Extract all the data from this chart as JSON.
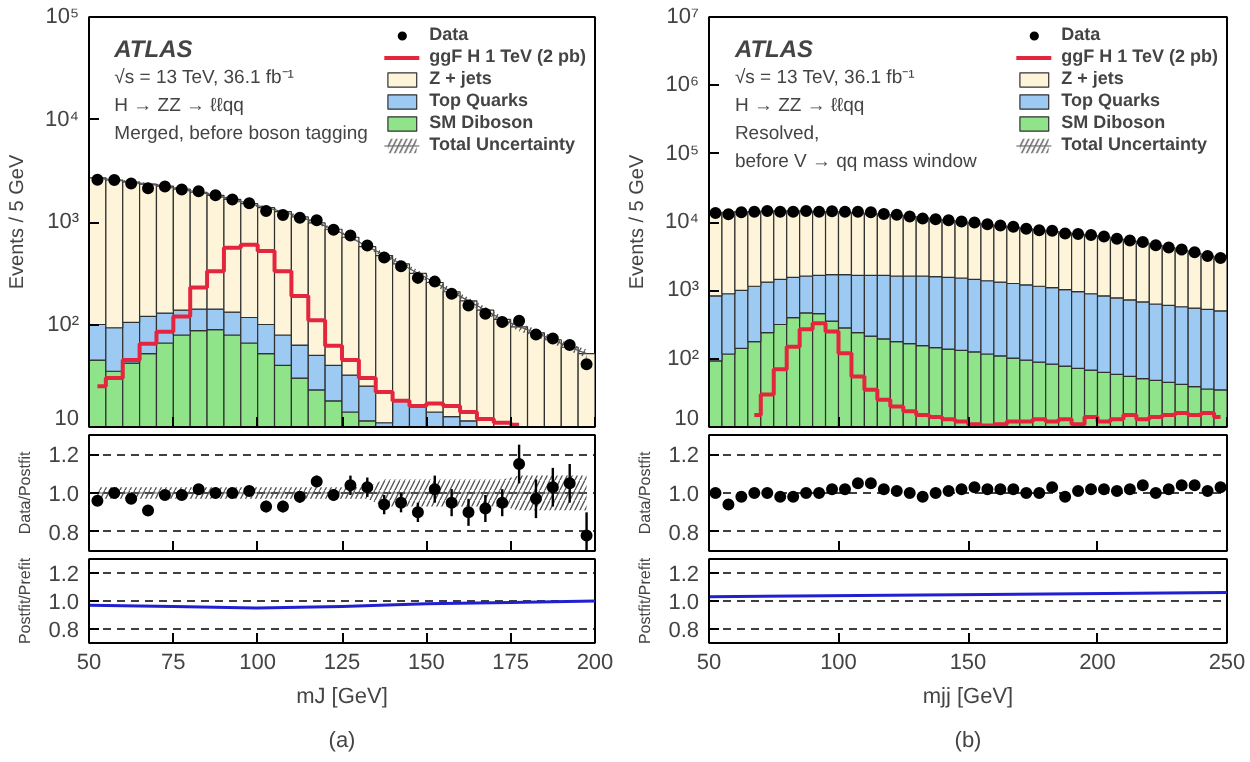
{
  "chart_data": [
    {
      "type": "bar",
      "stacked": true,
      "log": "y",
      "xlim": [
        50,
        200
      ],
      "ylim": [
        10,
        100000
      ],
      "xticks": [
        50,
        75,
        100,
        125,
        150,
        175,
        200
      ],
      "yticks": [
        10,
        {
          "value": 100,
          "label": "10²"
        },
        {
          "value": 1000,
          "label": "10³"
        },
        {
          "value": 10000,
          "label": "10⁴"
        },
        {
          "value": 100000,
          "label": "10⁵"
        }
      ],
      "tick_labels": "y",
      "ylabel": "Events / 5 GeV",
      "legend": "top right",
      "annotations": [
        "ATLAS",
        "√s = 13 TeV,  36.1 fb⁻¹",
        "H → ZZ → ℓℓqq",
        "Merged, before boson tagging"
      ],
      "x": [
        52.5,
        57.5,
        62.5,
        67.5,
        72.5,
        77.5,
        82.5,
        87.5,
        92.5,
        97.5,
        102.5,
        107.5,
        112.5,
        117.5,
        122.5,
        127.5,
        132.5,
        137.5,
        142.5,
        147.5,
        152.5,
        157.5,
        162.5,
        167.5,
        172.5,
        177.5,
        182.5,
        187.5,
        192.5,
        197.5
      ],
      "series": [
        {
          "name": "Data",
          "type": "scatter",
          "color": "#000000",
          "values": [
            2580,
            2570,
            2380,
            2130,
            2220,
            2070,
            1990,
            1820,
            1660,
            1525,
            1280,
            1170,
            1100,
            1040,
            840,
            740,
            590,
            450,
            370,
            285,
            262,
            199,
            153,
            127,
            106,
            109,
            80,
            73,
            63,
            41
          ]
        },
        {
          "name": "ggF H 1 TeV (2 pb)",
          "type": "step",
          "color": "#e3263d",
          "values": [
            25,
            30,
            45,
            65,
            85,
            120,
            230,
            330,
            560,
            600,
            520,
            330,
            190,
            110,
            62,
            45,
            30,
            22,
            18,
            16,
            17,
            16,
            14,
            12,
            11,
            10.5,
            null,
            null,
            null,
            null
          ]
        },
        {
          "name": "SM Diboson",
          "type": "bar",
          "color": "#8fe388",
          "values": [
            45,
            35,
            42,
            52,
            66,
            79,
            87,
            89,
            79,
            66,
            52,
            40,
            30,
            23,
            18,
            14,
            11.5,
            null,
            null,
            null,
            null,
            null,
            null,
            null,
            null,
            null,
            null,
            null,
            null,
            null
          ]
        },
        {
          "name": "Top Quarks",
          "type": "bar",
          "color": "#9dcaf3",
          "values": [
            55,
            58,
            63,
            68,
            63,
            59,
            54,
            52,
            53,
            51,
            48,
            39,
            33,
            27,
            22,
            18,
            13.5,
            11,
            18,
            16,
            14,
            12.6,
            11.5,
            null,
            null,
            null,
            null,
            null,
            null,
            null
          ]
        },
        {
          "name": "Z + jets",
          "type": "bar",
          "color": "#fdf4da",
          "values": [
            2590,
            2477,
            2350,
            2220,
            2111,
            1952,
            1809,
            1679,
            1528,
            1393,
            1280,
            1181,
            1057,
            930,
            810,
            678,
            550,
            459,
            372,
            300,
            243,
            196,
            158.5,
            138,
            112,
            95,
            83,
            71,
            60,
            52
          ]
        },
        {
          "name": "Total Uncertainty",
          "type": "line",
          "color": "#555555",
          "values": [
            2690,
            2570,
            2455,
            2340,
            2240,
            2090,
            1950,
            1820,
            1660,
            1510,
            1380,
            1260,
            1120,
            980,
            850,
            710,
            575,
            480,
            390,
            316,
            257,
            209,
            170,
            138,
            112,
            95,
            83,
            71,
            60,
            52
          ],
          "lower": [
            2609,
            2493,
            2381,
            2270,
            2173,
            2027,
            1892,
            1765,
            1610,
            1465,
            1339,
            1222,
            1086,
            951,
            825,
            689,
            558,
            446,
            363,
            294,
            239,
            194,
            158,
            128,
            104,
            86,
            76,
            65,
            55,
            47
          ],
          "upper": [
            2771,
            2647,
            2529,
            2410,
            2307,
            2153,
            2009,
            1875,
            1710,
            1555,
            1421,
            1298,
            1154,
            1009,
            876,
            731,
            592,
            514,
            417,
            338,
            275,
            224,
            182,
            148,
            120,
            104,
            90,
            77,
            65,
            57
          ]
        }
      ]
    },
    {
      "type": "scatter",
      "xlim": [
        50,
        200
      ],
      "ylim": [
        0.7,
        1.3
      ],
      "xticks": [
        50,
        75,
        100,
        125,
        150,
        175,
        200
      ],
      "yticks": [
        0.8,
        {
          "value": 1,
          "label": "1.0"
        },
        1.2
      ],
      "tick_labels": "y",
      "ylabel": "Data/Postfit",
      "grid": "y",
      "x": [
        52.5,
        57.5,
        62.5,
        67.5,
        72.5,
        77.5,
        82.5,
        87.5,
        92.5,
        97.5,
        102.5,
        107.5,
        112.5,
        117.5,
        122.5,
        127.5,
        132.5,
        137.5,
        142.5,
        147.5,
        152.5,
        157.5,
        162.5,
        167.5,
        172.5,
        177.5,
        182.5,
        187.5,
        192.5,
        197.5
      ],
      "series": [
        {
          "type": "line",
          "color": "#555555",
          "values": [
            1,
            1,
            1,
            1,
            1,
            1,
            1,
            1,
            1,
            1,
            1,
            1,
            1,
            1,
            1,
            1,
            1,
            1,
            1,
            1,
            1,
            1,
            1,
            1,
            1,
            1,
            1,
            1,
            1,
            1
          ],
          "lower": [
            0.97,
            0.97,
            0.97,
            0.97,
            0.97,
            0.97,
            0.97,
            0.97,
            0.97,
            0.97,
            0.97,
            0.97,
            0.97,
            0.97,
            0.97,
            0.97,
            0.97,
            0.93,
            0.93,
            0.93,
            0.93,
            0.93,
            0.93,
            0.93,
            0.93,
            0.91,
            0.91,
            0.91,
            0.91,
            0.91
          ],
          "upper": [
            1.03,
            1.03,
            1.03,
            1.03,
            1.03,
            1.03,
            1.03,
            1.03,
            1.03,
            1.03,
            1.03,
            1.03,
            1.03,
            1.03,
            1.03,
            1.03,
            1.03,
            1.07,
            1.07,
            1.07,
            1.07,
            1.07,
            1.07,
            1.07,
            1.07,
            1.09,
            1.09,
            1.09,
            1.09,
            1.09
          ]
        },
        {
          "type": "scatter",
          "color": "#000000",
          "values": [
            0.96,
            1.0,
            0.97,
            0.91,
            0.99,
            0.99,
            1.02,
            1.0,
            1.0,
            1.01,
            0.93,
            0.93,
            0.98,
            1.06,
            0.99,
            1.04,
            1.03,
            0.94,
            0.95,
            0.9,
            1.02,
            0.95,
            0.9,
            0.92,
            0.95,
            1.15,
            0.97,
            1.03,
            1.05,
            0.78
          ],
          "errors": [
            0.02,
            0.02,
            0.02,
            0.02,
            0.02,
            0.02,
            0.02,
            0.02,
            0.02,
            0.02,
            0.03,
            0.03,
            0.03,
            0.03,
            0.03,
            0.05,
            0.05,
            0.05,
            0.05,
            0.05,
            0.07,
            0.07,
            0.07,
            0.07,
            0.07,
            0.1,
            0.1,
            0.1,
            0.1,
            0.12
          ]
        }
      ]
    },
    {
      "type": "line",
      "xlim": [
        50,
        200
      ],
      "ylim": [
        0.7,
        1.3
      ],
      "xticks": [
        50,
        75,
        100,
        125,
        150,
        175,
        200
      ],
      "yticks": [
        0.8,
        {
          "value": 1,
          "label": "1.0"
        },
        1.2
      ],
      "ylabel": "Postfit/Prefit",
      "xlabel": "mJ [GeV]",
      "grid": "y",
      "annotations": [
        "(a)"
      ],
      "series": [
        {
          "color": "#2020d0",
          "x": [
            50,
            75,
            100,
            125,
            150,
            175,
            200
          ],
          "values": [
            0.97,
            0.96,
            0.95,
            0.96,
            0.98,
            0.99,
            1.0
          ]
        }
      ]
    },
    {
      "type": "bar",
      "stacked": true,
      "log": "y",
      "xlim": [
        50,
        250
      ],
      "ylim": [
        10,
        10000000
      ],
      "xticks": [
        50,
        100,
        150,
        200,
        250
      ],
      "yticks": [
        10,
        {
          "value": 100,
          "label": "10²"
        },
        {
          "value": 1000,
          "label": "10³"
        },
        {
          "value": 10000,
          "label": "10⁴"
        },
        {
          "value": 100000,
          "label": "10⁵"
        },
        {
          "value": 1000000,
          "label": "10⁶"
        },
        {
          "value": 10000000,
          "label": "10⁷"
        }
      ],
      "tick_labels": "y",
      "ylabel": "Events / 5 GeV",
      "legend": "top right",
      "annotations": [
        "ATLAS",
        "√s = 13 TeV,  36.1 fb⁻¹",
        "H → ZZ → ℓℓqq",
        "Resolved,",
        "before V → qq mass window"
      ],
      "x": [
        52.5,
        57.5,
        62.5,
        67.5,
        72.5,
        77.5,
        82.5,
        87.5,
        92.5,
        97.5,
        102.5,
        107.5,
        112.5,
        117.5,
        122.5,
        127.5,
        132.5,
        137.5,
        142.5,
        147.5,
        152.5,
        157.5,
        162.5,
        167.5,
        172.5,
        177.5,
        182.5,
        187.5,
        192.5,
        197.5,
        202.5,
        207.5,
        212.5,
        217.5,
        222.5,
        227.5,
        232.5,
        237.5,
        242.5,
        247.5
      ],
      "series": [
        {
          "name": "Data",
          "type": "scatter",
          "color": "#000000",
          "values": [
            13490,
            12970,
            13850,
            14130,
            14450,
            14160,
            14160,
            14450,
            14130,
            14410,
            14080,
            14160,
            13840,
            13140,
            12720,
            12020,
            11250,
            10960,
            10570,
            10200,
            9840,
            9300,
            8880,
            8490,
            7940,
            7590,
            7460,
            6780,
            6680,
            6440,
            6150,
            5680,
            5360,
            5100,
            4570,
            4250,
            3950,
            3610,
            3190,
            2970
          ]
        },
        {
          "name": "ggF H 1 TeV (2 pb)",
          "type": "step",
          "color": "#e3263d",
          "values": [
            null,
            null,
            null,
            15,
            30,
            70,
            150,
            270,
            330,
            250,
            120,
            55,
            35,
            25,
            20,
            17,
            15,
            14,
            13,
            12,
            11,
            10.5,
            11,
            12,
            12,
            13,
            12,
            13,
            11,
            14,
            12,
            13,
            15,
            13,
            14,
            15,
            16,
            15,
            16,
            14
          ]
        },
        {
          "name": "SM Diboson",
          "type": "bar",
          "color": "#8fe388",
          "values": [
            93,
            117,
            141,
            178,
            240,
            316,
            398,
            468,
            457,
            355,
            282,
            240,
            214,
            195,
            178,
            166,
            155,
            145,
            138,
            132,
            126,
            117,
            110,
            102,
            95,
            89,
            83,
            78,
            72,
            68,
            63,
            59,
            55,
            51,
            48,
            45,
            42,
            39,
            36,
            35
          ]
        },
        {
          "name": "Top Quarks",
          "type": "bar",
          "color": "#9dcaf3",
          "values": [
            739,
            774,
            859,
            970,
            1078,
            1129,
            1151,
            1154,
            1203,
            1343,
            1416,
            1420,
            1446,
            1465,
            1444,
            1456,
            1467,
            1440,
            1411,
            1382,
            1319,
            1263,
            1208,
            1157,
            1107,
            1059,
            1013,
            945,
            883,
            823,
            769,
            717,
            669,
            625,
            583,
            558,
            533,
            511,
            489,
            466
          ]
        },
        {
          "name": "Z + jets",
          "type": "bar",
          "color": "#fdf4da",
          "values": [
            12658,
            12909,
            13130,
            12982,
            13132,
            13005,
            12901,
            12828,
            12470,
            12432,
            12102,
            11830,
            11520,
            11220,
            10968,
            10398,
            9858,
            9375,
            8921,
            8486,
            8105,
            7740,
            7392,
            7061,
            6738,
            6442,
            6144,
            5897,
            5655,
            5419,
            5198,
            4844,
            4526,
            4224,
            3939,
            3567,
            3225,
            2920,
            2635,
            2379
          ]
        },
        {
          "name": "Total Uncertainty",
          "type": "line",
          "color": "#555555",
          "values": [
            13490,
            13800,
            14130,
            14130,
            14450,
            14450,
            14450,
            14450,
            14130,
            14130,
            13800,
            13490,
            13180,
            12880,
            12590,
            12020,
            11480,
            10960,
            10470,
            10000,
            9550,
            9120,
            8710,
            8320,
            7940,
            7590,
            7240,
            6920,
            6610,
            6310,
            6030,
            5620,
            5250,
            4900,
            4570,
            4170,
            3800,
            3470,
            3160,
            2880
          ],
          "lower": [
            13220,
            13520,
            13850,
            13850,
            14160,
            14160,
            14160,
            14160,
            13850,
            13850,
            13520,
            13220,
            12920,
            12620,
            12340,
            11780,
            11250,
            10740,
            10260,
            9800,
            9360,
            8940,
            8540,
            8150,
            7780,
            7440,
            7100,
            6780,
            6480,
            6180,
            5910,
            5510,
            5150,
            4800,
            4480,
            4090,
            3720,
            3400,
            3100,
            2820
          ],
          "upper": [
            13760,
            14080,
            14410,
            14410,
            14740,
            14740,
            14740,
            14740,
            14410,
            14410,
            14080,
            13760,
            13440,
            13140,
            12840,
            12260,
            11710,
            11180,
            10680,
            10200,
            9740,
            9300,
            8880,
            8490,
            8100,
            7740,
            7380,
            7060,
            6740,
            6440,
            6150,
            5730,
            5360,
            5000,
            4660,
            4250,
            3880,
            3540,
            3220,
            2940
          ]
        }
      ]
    },
    {
      "type": "scatter",
      "xlim": [
        50,
        250
      ],
      "ylim": [
        0.7,
        1.3
      ],
      "xticks": [
        50,
        100,
        150,
        200,
        250
      ],
      "yticks": [
        0.8,
        {
          "value": 1,
          "label": "1.0"
        },
        1.2
      ],
      "tick_labels": "y",
      "ylabel": "Data/Postfit",
      "grid": "y",
      "x": [
        52.5,
        57.5,
        62.5,
        67.5,
        72.5,
        77.5,
        82.5,
        87.5,
        92.5,
        97.5,
        102.5,
        107.5,
        112.5,
        117.5,
        122.5,
        127.5,
        132.5,
        137.5,
        142.5,
        147.5,
        152.5,
        157.5,
        162.5,
        167.5,
        172.5,
        177.5,
        182.5,
        187.5,
        192.5,
        197.5,
        202.5,
        207.5,
        212.5,
        217.5,
        222.5,
        227.5,
        232.5,
        237.5,
        242.5,
        247.5
      ],
      "series": [
        {
          "type": "scatter",
          "color": "#000000",
          "values": [
            1.0,
            0.94,
            0.98,
            1.0,
            1.0,
            0.98,
            0.98,
            1.0,
            1.0,
            1.02,
            1.02,
            1.05,
            1.05,
            1.02,
            1.01,
            1.0,
            0.98,
            1.0,
            1.01,
            1.02,
            1.03,
            1.02,
            1.02,
            1.02,
            1.0,
            1.0,
            1.03,
            0.98,
            1.01,
            1.02,
            1.02,
            1.01,
            1.02,
            1.04,
            1.0,
            1.02,
            1.04,
            1.04,
            1.01,
            1.03
          ]
        }
      ]
    },
    {
      "type": "line",
      "xlim": [
        50,
        250
      ],
      "ylim": [
        0.7,
        1.3
      ],
      "xticks": [
        50,
        100,
        150,
        200,
        250
      ],
      "yticks": [
        0.8,
        {
          "value": 1,
          "label": "1.0"
        },
        1.2
      ],
      "ylabel": "Postfit/Prefit",
      "xlabel": "mjj [GeV]",
      "grid": "y",
      "annotations": [
        "(b)"
      ],
      "series": [
        {
          "color": "#2020d0",
          "x": [
            50,
            250
          ],
          "values": [
            1.03,
            1.06
          ]
        }
      ]
    }
  ]
}
